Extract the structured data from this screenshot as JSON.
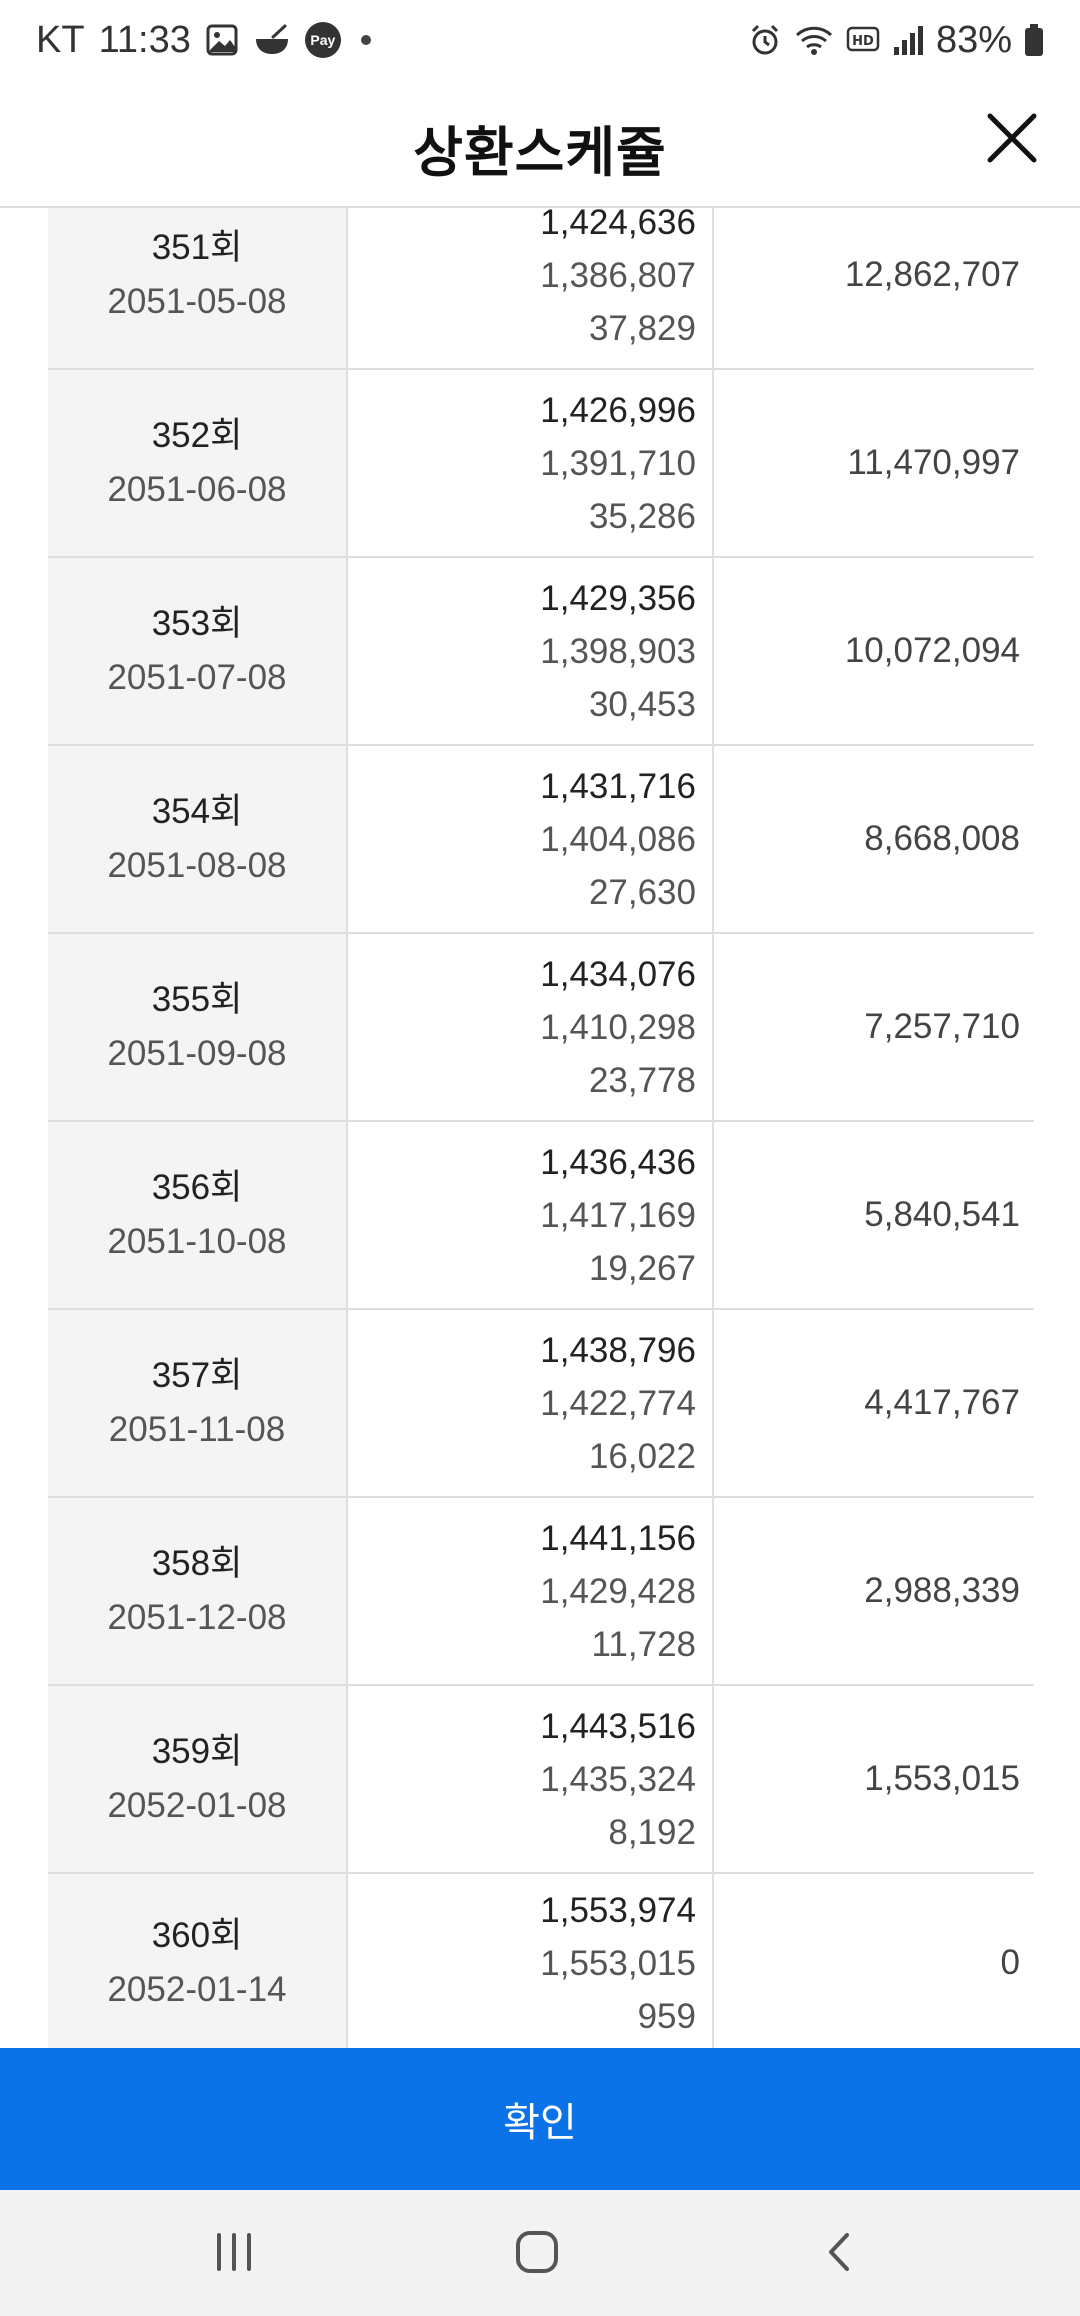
{
  "status_bar": {
    "carrier": "KT",
    "time": "11:33",
    "pay_badge": "Pay",
    "battery": "83%"
  },
  "header": {
    "title": "상환스케쥴"
  },
  "schedule": [
    {
      "no": "351회",
      "date": "2051-05-08",
      "payment": "1,424,636",
      "principal": "1,386,807",
      "interest": "37,829",
      "balance": "12,862,707"
    },
    {
      "no": "352회",
      "date": "2051-06-08",
      "payment": "1,426,996",
      "principal": "1,391,710",
      "interest": "35,286",
      "balance": "11,470,997"
    },
    {
      "no": "353회",
      "date": "2051-07-08",
      "payment": "1,429,356",
      "principal": "1,398,903",
      "interest": "30,453",
      "balance": "10,072,094"
    },
    {
      "no": "354회",
      "date": "2051-08-08",
      "payment": "1,431,716",
      "principal": "1,404,086",
      "interest": "27,630",
      "balance": "8,668,008"
    },
    {
      "no": "355회",
      "date": "2051-09-08",
      "payment": "1,434,076",
      "principal": "1,410,298",
      "interest": "23,778",
      "balance": "7,257,710"
    },
    {
      "no": "356회",
      "date": "2051-10-08",
      "payment": "1,436,436",
      "principal": "1,417,169",
      "interest": "19,267",
      "balance": "5,840,541"
    },
    {
      "no": "357회",
      "date": "2051-11-08",
      "payment": "1,438,796",
      "principal": "1,422,774",
      "interest": "16,022",
      "balance": "4,417,767"
    },
    {
      "no": "358회",
      "date": "2051-12-08",
      "payment": "1,441,156",
      "principal": "1,429,428",
      "interest": "11,728",
      "balance": "2,988,339"
    },
    {
      "no": "359회",
      "date": "2052-01-08",
      "payment": "1,443,516",
      "principal": "1,435,324",
      "interest": "8,192",
      "balance": "1,553,015"
    },
    {
      "no": "360회",
      "date": "2052-01-14",
      "payment": "1,553,974",
      "principal": "1,553,015",
      "interest": "959",
      "balance": "0"
    }
  ],
  "footer": {
    "confirm_label": "확인"
  },
  "nav": {
    "recents_icon": "recents-icon",
    "home_icon": "home-icon",
    "back_icon": "back-icon"
  },
  "colors": {
    "primary": "#0b72e7",
    "row_label_bg": "#f4f4f4",
    "divider": "#dedede"
  }
}
